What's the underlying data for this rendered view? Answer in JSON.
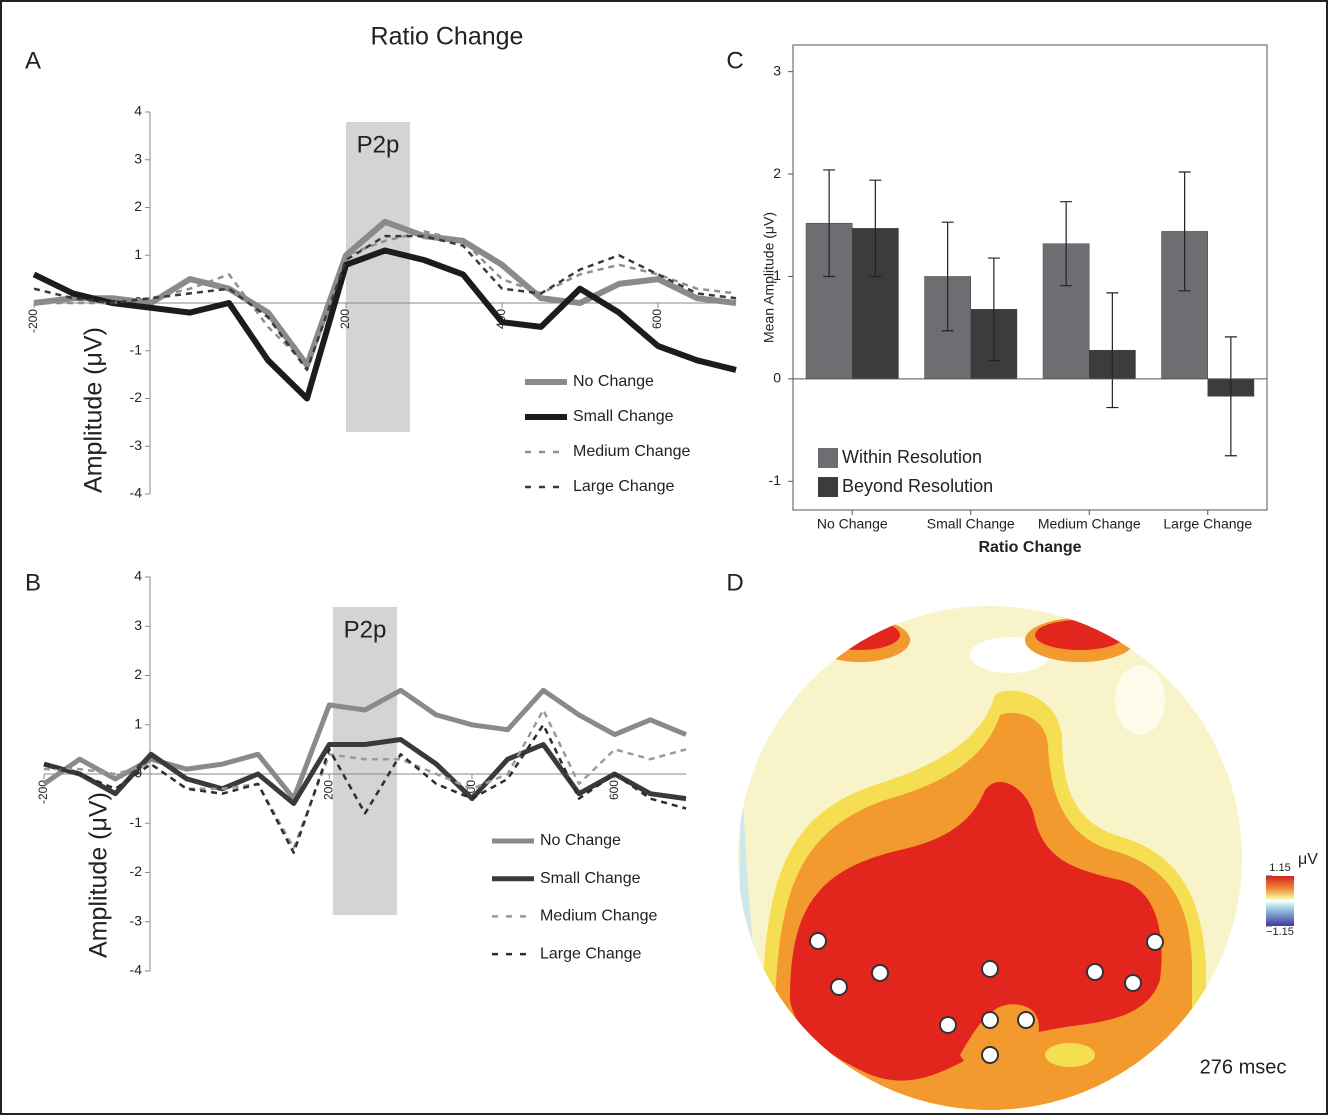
{
  "chart_data": [
    {
      "type": "line",
      "panel": "A",
      "title": "Ratio Change",
      "y_label": "Amplitude (μV)",
      "x": [
        -200,
        -150,
        -100,
        -50,
        0,
        50,
        100,
        150,
        200,
        250,
        300,
        350,
        400,
        450,
        500,
        550,
        600,
        650,
        700
      ],
      "xlim": [
        -200,
        700
      ],
      "xticks": [
        -200,
        200,
        400,
        600
      ],
      "ylim": [
        -4,
        4
      ],
      "yticks": [
        -4,
        -3,
        -2,
        -1,
        0,
        1,
        2,
        3,
        4
      ],
      "highlight": [
        200,
        282
      ],
      "highlight_label": "P2p",
      "series": [
        {
          "name": "No Change",
          "color": "#8a8a8c",
          "style": "solid",
          "values": [
            0.0,
            0.1,
            0.1,
            0.0,
            0.5,
            0.3,
            -0.2,
            -1.3,
            1.0,
            1.7,
            1.4,
            1.3,
            0.8,
            0.1,
            0.0,
            0.4,
            0.5,
            0.1,
            0.0
          ]
        },
        {
          "name": "Small Change",
          "color": "#1c1c1c",
          "style": "solid",
          "values": [
            0.6,
            0.2,
            0.0,
            -0.1,
            -0.2,
            0.0,
            -1.2,
            -2.0,
            0.8,
            1.1,
            0.9,
            0.6,
            -0.4,
            -0.5,
            0.3,
            -0.2,
            -0.9,
            -1.2,
            -1.4
          ]
        },
        {
          "name": "Medium Change",
          "color": "#8f8f8f",
          "style": "dashed",
          "values": [
            0.0,
            0.0,
            0.0,
            0.1,
            0.3,
            0.6,
            -0.5,
            -1.3,
            1.0,
            1.3,
            1.5,
            1.3,
            0.5,
            0.2,
            0.6,
            0.8,
            0.6,
            0.3,
            0.2
          ]
        },
        {
          "name": "Large Change",
          "color": "#3a3a3a",
          "style": "dashed",
          "values": [
            0.3,
            0.1,
            0.0,
            0.1,
            0.2,
            0.3,
            -0.3,
            -1.4,
            0.9,
            1.4,
            1.4,
            1.2,
            0.3,
            0.2,
            0.7,
            1.0,
            0.6,
            0.2,
            0.1
          ]
        }
      ]
    },
    {
      "type": "line",
      "panel": "B",
      "y_label": "Amplitude (μV)",
      "x": [
        -200,
        -150,
        -100,
        -50,
        0,
        50,
        100,
        150,
        200,
        250,
        300,
        350,
        400,
        450,
        500,
        550,
        600,
        650,
        700
      ],
      "xlim": [
        -200,
        700
      ],
      "xticks": [
        -200,
        200,
        400,
        600
      ],
      "ylim": [
        -4,
        4
      ],
      "yticks": [
        -4,
        -3,
        -2,
        -1,
        0,
        1,
        2,
        3,
        4
      ],
      "highlight": [
        205,
        295
      ],
      "highlight_label": "P2p",
      "series": [
        {
          "name": "No Change",
          "color": "#8a8a8c",
          "style": "solid",
          "values": [
            -0.2,
            0.3,
            -0.1,
            0.3,
            0.1,
            0.2,
            0.4,
            -0.5,
            1.4,
            1.3,
            1.7,
            1.2,
            1.0,
            0.9,
            1.7,
            1.2,
            0.8,
            1.1,
            0.8
          ]
        },
        {
          "name": "Small Change",
          "color": "#3a3a3a",
          "style": "solid",
          "values": [
            0.2,
            0.0,
            -0.4,
            0.4,
            -0.1,
            -0.3,
            0.0,
            -0.6,
            0.6,
            0.6,
            0.7,
            0.2,
            -0.5,
            0.3,
            0.6,
            -0.4,
            0.0,
            -0.4,
            -0.5
          ]
        },
        {
          "name": "Medium Change",
          "color": "#9a9a9a",
          "style": "dashed",
          "values": [
            0.1,
            0.1,
            0.0,
            0.2,
            -0.3,
            -0.3,
            -0.2,
            -1.5,
            0.4,
            0.3,
            0.3,
            0.0,
            -0.3,
            0.0,
            1.3,
            -0.2,
            0.5,
            0.3,
            0.5
          ]
        },
        {
          "name": "Large Change",
          "color": "#2e2e2e",
          "style": "dashed",
          "values": [
            0.2,
            0.0,
            -0.3,
            0.2,
            -0.3,
            -0.4,
            -0.2,
            -1.6,
            0.5,
            -0.8,
            0.4,
            -0.2,
            -0.5,
            -0.1,
            1.0,
            -0.5,
            0.0,
            -0.5,
            -0.7
          ]
        }
      ]
    },
    {
      "type": "bar",
      "panel": "C",
      "y_label": "Mean Amplitude (μV)",
      "x_label": "Ratio Change",
      "categories": [
        "No Change",
        "Small Change",
        "Medium Change",
        "Large Change"
      ],
      "ylim": [
        -1.28,
        3.26
      ],
      "yticks": [
        -1,
        0,
        1,
        2,
        3
      ],
      "series": [
        {
          "name": "Within Resolution",
          "color": "#6d6e71",
          "values": [
            1.52,
            1.0,
            1.32,
            1.44
          ],
          "errors": [
            0.52,
            0.53,
            0.41,
            0.58
          ]
        },
        {
          "name": "Beyond Resolution",
          "color": "#3b3c3e",
          "values": [
            1.47,
            0.68,
            0.28,
            -0.17
          ],
          "errors": [
            0.47,
            0.5,
            0.56,
            0.58
          ]
        }
      ]
    },
    {
      "type": "topomap",
      "panel": "D",
      "annotation": "276 msec",
      "unit": "μV",
      "colorbar_ticks": [
        1.15,
        {
          "value": -1.15,
          "label": "−1.15"
        }
      ]
    }
  ]
}
